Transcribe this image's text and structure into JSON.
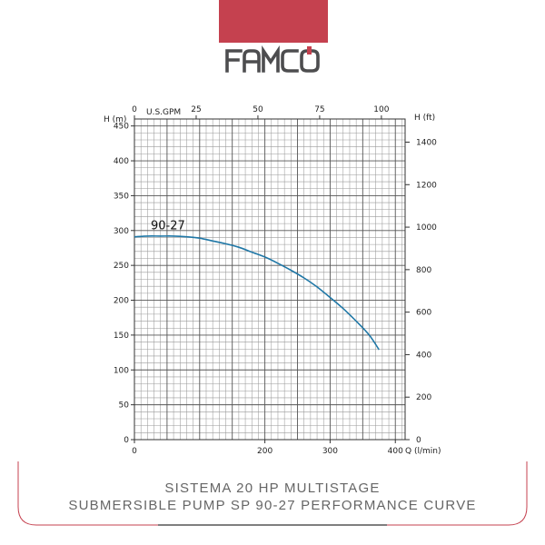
{
  "brand": {
    "name": "FAMCO",
    "accent_color": "#c5414f",
    "logo_color": "#4d4d4f"
  },
  "caption": {
    "line1": "SISTEMA 20 HP MULTISTAGE",
    "line2": "SUBMERSIBLE PUMP SP 90-27 PERFORMANCE CURVE"
  },
  "chart_data": {
    "type": "line",
    "title": "",
    "grid": true,
    "axes": {
      "left": {
        "label": "H (m)",
        "range": [
          0,
          460
        ],
        "ticks": [
          0,
          50,
          100,
          150,
          200,
          250,
          300,
          350,
          400,
          450
        ]
      },
      "right": {
        "label": "H (ft)",
        "range": [
          0,
          1509
        ],
        "ticks": [
          0,
          200,
          400,
          600,
          800,
          1000,
          1200,
          1400
        ]
      },
      "bottom": {
        "label": "Q (l/min)",
        "range": [
          0,
          415
        ],
        "ticks": [
          0,
          200,
          300,
          400
        ]
      },
      "top": {
        "label": "U.S.GPM",
        "range": [
          0,
          109.6
        ],
        "ticks": [
          0,
          25,
          50,
          75,
          100
        ]
      }
    },
    "series": [
      {
        "name": "90-27",
        "color": "#1f77a6",
        "x": [
          0,
          20,
          40,
          60,
          80,
          100,
          120,
          140,
          160,
          180,
          200,
          220,
          240,
          260,
          280,
          300,
          320,
          340,
          360,
          375
        ],
        "y": [
          291,
          292,
          292,
          292,
          291,
          289,
          285,
          281,
          276,
          269,
          262,
          253,
          243,
          232,
          219,
          204,
          188,
          170,
          150,
          129
        ]
      }
    ]
  }
}
